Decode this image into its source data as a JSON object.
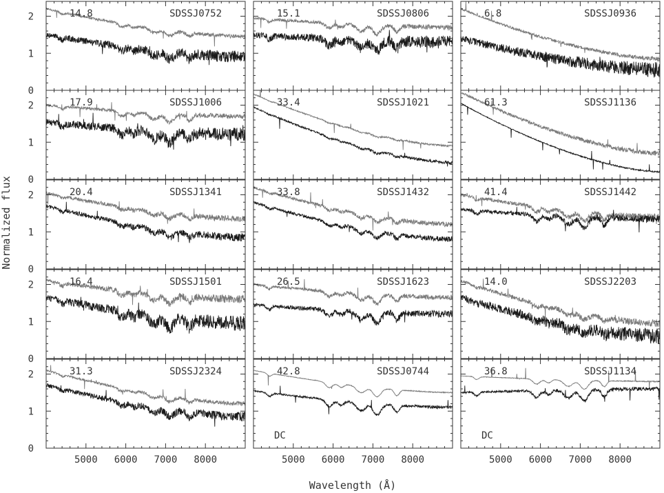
{
  "chart_data": {
    "type": "line",
    "xlabel": "Wavelength (Å)",
    "ylabel": "Normalized flux",
    "xlim": [
      4000,
      9000
    ],
    "ylim": [
      0,
      2.4
    ],
    "x_ticks": [
      5000,
      6000,
      7000,
      8000
    ],
    "x_tick_labels": [
      "5000",
      "6000",
      "7000",
      "8000"
    ],
    "y_ticks": [
      0,
      1,
      2
    ],
    "y_tick_labels": [
      "0",
      "1",
      "2"
    ],
    "grid": false,
    "layout": {
      "rows": 5,
      "cols": 3
    },
    "panels": [
      {
        "name": "SDSSJ0752",
        "number": "14.8",
        "dc": "",
        "upper": {
          "start": 2.2,
          "end": 1.45,
          "noise": 0.04
        },
        "lower": {
          "start": 1.5,
          "end": 0.9,
          "noise": 0.12
        },
        "bands": "mild"
      },
      {
        "name": "SDSSJ0806",
        "number": "15.1",
        "dc": "",
        "upper": {
          "start": 1.95,
          "end": 1.7,
          "noise": 0.05
        },
        "lower": {
          "start": 1.5,
          "end": 1.3,
          "noise": 0.13
        },
        "bands": "strong"
      },
      {
        "name": "SDSSJ0936",
        "number": "6.8",
        "dc": "",
        "upper": {
          "start": 2.2,
          "end": 0.85,
          "noise": 0.04
        },
        "lower": {
          "start": 1.4,
          "end": 0.55,
          "noise": 0.15
        },
        "bands": "none"
      },
      {
        "name": "SDSSJ1006",
        "number": "17.9",
        "dc": "",
        "upper": {
          "start": 2.0,
          "end": 1.7,
          "noise": 0.05
        },
        "lower": {
          "start": 1.55,
          "end": 1.2,
          "noise": 0.14
        },
        "bands": "strong"
      },
      {
        "name": "SDSSJ1021",
        "number": "33.4",
        "dc": "",
        "upper": {
          "start": 2.3,
          "end": 0.9,
          "noise": 0.02
        },
        "lower": {
          "start": 1.95,
          "end": 0.45,
          "noise": 0.03
        },
        "bands": "weak"
      },
      {
        "name": "SDSSJ1136",
        "number": "61.3",
        "dc": "",
        "upper": {
          "start": 2.35,
          "end": 0.7,
          "noise": 0.05
        },
        "lower": {
          "start": 2.05,
          "end": 0.2,
          "noise": 0.015
        },
        "bands": "none"
      },
      {
        "name": "SDSSJ1341",
        "number": "20.4",
        "dc": "",
        "upper": {
          "start": 2.05,
          "end": 1.35,
          "noise": 0.06
        },
        "lower": {
          "start": 1.7,
          "end": 0.85,
          "noise": 0.08
        },
        "bands": "mild"
      },
      {
        "name": "SDSSJ1432",
        "number": "33.8",
        "dc": "",
        "upper": {
          "start": 2.2,
          "end": 1.2,
          "noise": 0.05
        },
        "lower": {
          "start": 1.8,
          "end": 0.8,
          "noise": 0.05
        },
        "bands": "mild"
      },
      {
        "name": "SDSSJ1442",
        "number": "41.4",
        "dc": "",
        "upper": {
          "start": 2.0,
          "end": 1.4,
          "noise": 0.06
        },
        "lower": {
          "start": 1.6,
          "end": 1.35,
          "noise": 0.07
        },
        "bands": "strong"
      },
      {
        "name": "SDSSJ1501",
        "number": "16.4",
        "dc": "",
        "upper": {
          "start": 2.1,
          "end": 1.6,
          "noise": 0.08
        },
        "lower": {
          "start": 1.65,
          "end": 0.95,
          "noise": 0.15
        },
        "bands": "strong"
      },
      {
        "name": "SDSSJ1623",
        "number": "26.5",
        "dc": "",
        "upper": {
          "start": 2.0,
          "end": 1.65,
          "noise": 0.05
        },
        "lower": {
          "start": 1.45,
          "end": 1.2,
          "noise": 0.07
        },
        "bands": "strong"
      },
      {
        "name": "SDSSJ2203",
        "number": "14.0",
        "dc": "",
        "upper": {
          "start": 2.1,
          "end": 0.95,
          "noise": 0.07
        },
        "lower": {
          "start": 1.65,
          "end": 0.6,
          "noise": 0.15
        },
        "bands": "mild"
      },
      {
        "name": "SDSSJ2324",
        "number": "31.3",
        "dc": "",
        "upper": {
          "start": 2.1,
          "end": 1.2,
          "noise": 0.04
        },
        "lower": {
          "start": 1.7,
          "end": 0.85,
          "noise": 0.09
        },
        "bands": "mild"
      },
      {
        "name": "SDSSJ0744",
        "number": "42.8",
        "dc": "DC",
        "upper": {
          "start": 2.1,
          "end": 1.5,
          "noise": 0.01
        },
        "lower": {
          "start": 1.55,
          "end": 1.1,
          "noise": 0.03
        },
        "bands": "strong"
      },
      {
        "name": "SDSSJ1134",
        "number": "36.8",
        "dc": "DC",
        "upper": {
          "start": 1.95,
          "end": 1.8,
          "noise": 0.01
        },
        "lower": {
          "start": 1.5,
          "end": 1.6,
          "noise": 0.04
        },
        "bands": "strong"
      }
    ]
  },
  "colors": {
    "upper_series": "#7a7a7a",
    "lower_series": "#1a1a1a",
    "frame": "#333333",
    "text": "#333333"
  }
}
